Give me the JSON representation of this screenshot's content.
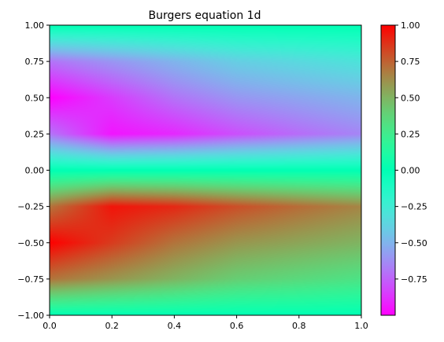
{
  "chart_data": {
    "type": "heatmap",
    "title": "Burgers equation 1d",
    "xlabel": "",
    "ylabel": "",
    "xlim": [
      0.0,
      1.0
    ],
    "ylim": [
      -1.0,
      1.0
    ],
    "x_ticks": [
      "0.0",
      "0.2",
      "0.4",
      "0.6",
      "0.8",
      "1.0"
    ],
    "y_ticks": [
      "1.00",
      "0.75",
      "0.50",
      "0.25",
      "0.00",
      "−0.25",
      "−0.50",
      "−0.75",
      "−1.00"
    ],
    "colormap": "rainbow",
    "color_range": [
      -1.0,
      1.0
    ],
    "colorbar_ticks": [
      "1.00",
      "0.75",
      "0.50",
      "0.25",
      "0.00",
      "−0.25",
      "−0.50",
      "−0.75"
    ],
    "grid": false,
    "field": {
      "t": [
        0.0,
        0.2,
        0.4,
        0.6,
        0.8,
        1.0
      ],
      "x": [
        1.0,
        0.75,
        0.5,
        0.25,
        0.0,
        -0.25,
        -0.5,
        -0.75,
        -1.0
      ],
      "u": [
        [
          0.0,
          0.0,
          0.0,
          0.0,
          0.0,
          0.0
        ],
        [
          -0.7,
          -0.6,
          -0.5,
          -0.4,
          -0.35,
          -0.3
        ],
        [
          -1.0,
          -0.85,
          -0.7,
          -0.6,
          -0.55,
          -0.5
        ],
        [
          -0.7,
          -0.95,
          -0.9,
          -0.8,
          -0.72,
          -0.65
        ],
        [
          0.0,
          0.0,
          0.0,
          0.0,
          0.0,
          0.0
        ],
        [
          0.7,
          0.95,
          0.9,
          0.8,
          0.72,
          0.65
        ],
        [
          1.0,
          0.85,
          0.7,
          0.6,
          0.55,
          0.5
        ],
        [
          0.7,
          0.6,
          0.5,
          0.4,
          0.35,
          0.3
        ],
        [
          0.0,
          0.0,
          0.0,
          0.0,
          0.0,
          0.0
        ]
      ]
    }
  }
}
